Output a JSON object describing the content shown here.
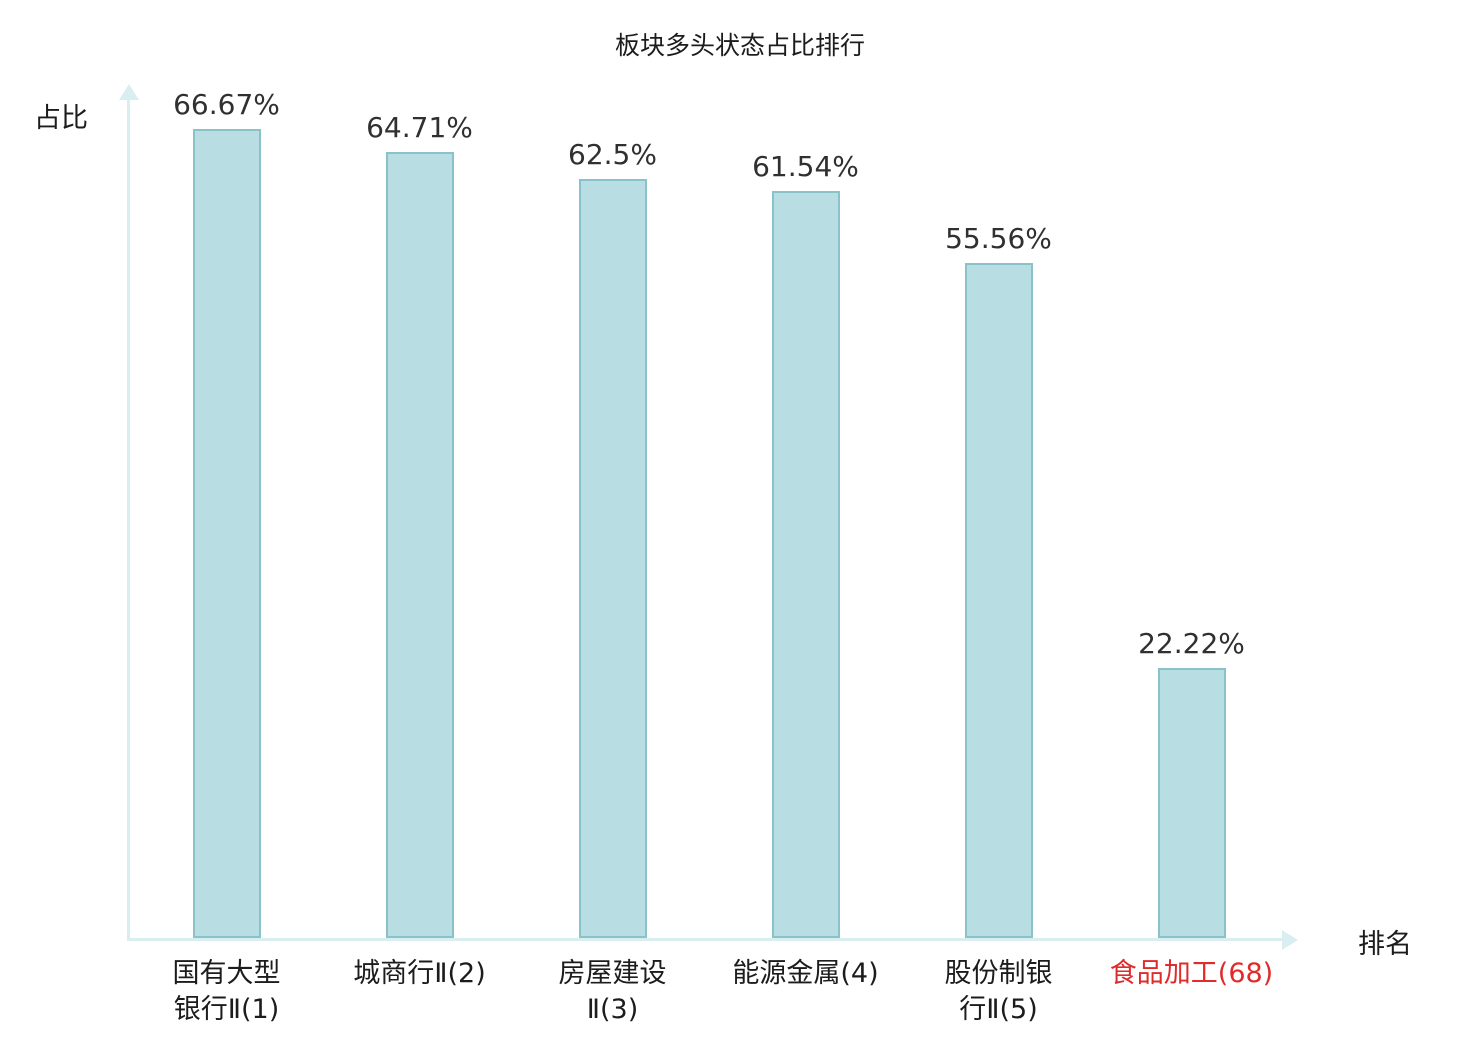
{
  "chart_data": {
    "type": "bar",
    "title": "板块多头状态占比排行",
    "ylabel": "占比",
    "xlabel": "排名",
    "categories": [
      "国有大型\n银行Ⅱ(1)",
      "城商行Ⅱ(2)",
      "房屋建设\nⅡ(3)",
      "能源金属(4)",
      "股份制银\n行Ⅱ(5)",
      "食品加工(68)"
    ],
    "values": [
      66.67,
      64.71,
      62.5,
      61.54,
      55.56,
      22.22
    ],
    "value_labels": [
      "66.67%",
      "64.71%",
      "62.5%",
      "61.54%",
      "55.56%",
      "22.22%"
    ],
    "highlight_index": 5,
    "ylim": [
      0,
      70
    ],
    "grid": false,
    "legend": "none",
    "colors": {
      "bar_fill": "#b8dee4",
      "bar_border": "#8ac2ca",
      "axis": "#d9eef1",
      "text": "#1c1c1c",
      "value_label": "#303030",
      "highlight": "#e02b2b"
    }
  }
}
